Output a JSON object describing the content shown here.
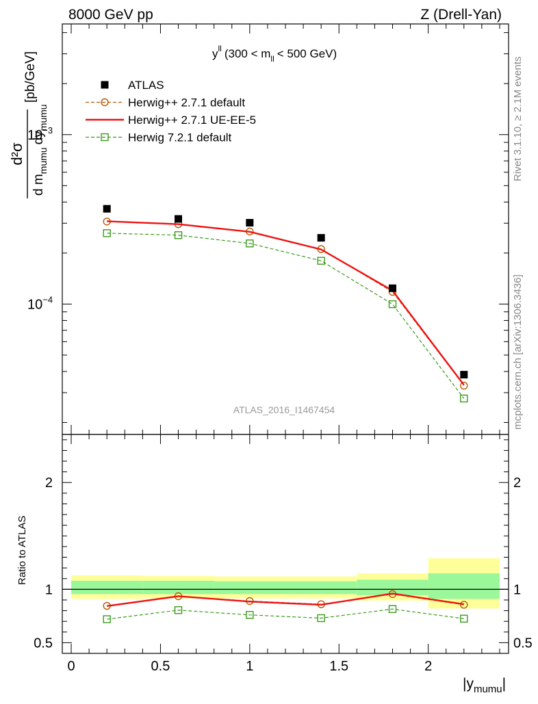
{
  "header": {
    "left": "8000 GeV pp",
    "right": "Z (Drell-Yan)",
    "plot_label_main": "y",
    "plot_label_sup": "ll",
    "plot_label_mid": "(300 < m",
    "plot_label_sub": "ll",
    "plot_label_end": "< 500 GeV)"
  },
  "side_text": {
    "rivet": "Rivet 3.1.10, ≥ 2.1M events",
    "mcplots": "mcplots.cern.ch [arXiv:1306.3436]"
  },
  "watermark": "ATLAS_2016_I1467454",
  "ylabel_main": {
    "numerator": "d²σ",
    "den_d1": "d m",
    "den_sub1": "mumu",
    "den_d2": "dy",
    "den_sub2": "mumu",
    "unit": "[pb/GeV]"
  },
  "ylabel_ratio": "Ratio to ATLAS",
  "xlabel": {
    "main": "|y",
    "sub": "mumu",
    "end": "|"
  },
  "colors": {
    "data": "#000000",
    "herwigpp_default": "#b35900",
    "herwigpp_ueee5": "#ee1111",
    "herwig7": "#3a9a1a",
    "band_inner": "#9af89a",
    "band_outer": "#ffff99"
  },
  "chart_data": {
    "type": "scatter",
    "main": {
      "yscale": "log",
      "xlim": [
        -0.05,
        2.45
      ],
      "ylim": [
        1.7e-05,
        0.0045
      ],
      "y_ticks": [
        {
          "value": 0.0001,
          "base": "10",
          "exp": "−4"
        },
        {
          "value": 0.001,
          "base": "10",
          "exp": "−3"
        }
      ]
    },
    "x_ticks": [
      {
        "value": 0,
        "label": "0"
      },
      {
        "value": 0.5,
        "label": "0.5"
      },
      {
        "value": 1,
        "label": "1"
      },
      {
        "value": 1.5,
        "label": "1.5"
      },
      {
        "value": 2,
        "label": "2"
      }
    ],
    "x": [
      0.2,
      0.6,
      1.0,
      1.4,
      1.8,
      2.2
    ],
    "bin_edges": [
      0.0,
      0.4,
      0.8,
      1.2,
      1.6,
      2.0,
      2.4
    ],
    "series": [
      {
        "name": "ATLAS",
        "values": [
          0.000365,
          0.000318,
          0.000302,
          0.000246,
          0.000124,
          3.83e-05
        ]
      },
      {
        "name": "Herwig++ 2.7.1 default",
        "values": [
          0.000307,
          0.000296,
          0.000268,
          0.000211,
          0.000118,
          3.3e-05
        ]
      },
      {
        "name": "Herwig++ 2.7.1 UE-EE-5",
        "values": [
          0.000308,
          0.000296,
          0.000267,
          0.00021,
          0.00012,
          3.33e-05
        ]
      },
      {
        "name": "Herwig 7.2.1 default",
        "values": [
          0.000262,
          0.000255,
          0.000228,
          0.00018,
          9.98e-05,
          2.77e-05
        ]
      }
    ],
    "ratio": {
      "ylim": [
        0.4,
        2.45
      ],
      "y_ticks": [
        {
          "value": 0.5,
          "label": "0.5"
        },
        {
          "value": 1,
          "label": "1"
        },
        {
          "value": 2,
          "label": "2"
        }
      ],
      "bands": [
        {
          "x0": 0.0,
          "x1": 0.4,
          "inner": [
            0.955,
            1.08
          ],
          "outer": [
            0.91,
            1.13
          ]
        },
        {
          "x0": 0.4,
          "x1": 0.8,
          "inner": [
            0.955,
            1.08
          ],
          "outer": [
            0.915,
            1.125
          ]
        },
        {
          "x0": 0.8,
          "x1": 1.2,
          "inner": [
            0.955,
            1.075
          ],
          "outer": [
            0.915,
            1.12
          ]
        },
        {
          "x0": 1.2,
          "x1": 1.6,
          "inner": [
            0.955,
            1.075
          ],
          "outer": [
            0.915,
            1.12
          ]
        },
        {
          "x0": 1.6,
          "x1": 2.0,
          "inner": [
            0.945,
            1.09
          ],
          "outer": [
            0.895,
            1.15
          ]
        },
        {
          "x0": 2.0,
          "x1": 2.4,
          "inner": [
            0.91,
            1.15
          ],
          "outer": [
            0.82,
            1.29
          ]
        }
      ],
      "series": [
        {
          "name": "Herwig++ 2.7.1 default",
          "values": [
            0.845,
            0.935,
            0.89,
            0.86,
            0.955,
            0.855
          ]
        },
        {
          "name": "Herwig++ 2.7.1 UE-EE-5",
          "values": [
            0.843,
            0.935,
            0.885,
            0.855,
            0.96,
            0.86
          ]
        },
        {
          "name": "Herwig 7.2.1 default",
          "values": [
            0.72,
            0.805,
            0.76,
            0.73,
            0.815,
            0.725
          ]
        }
      ]
    }
  }
}
